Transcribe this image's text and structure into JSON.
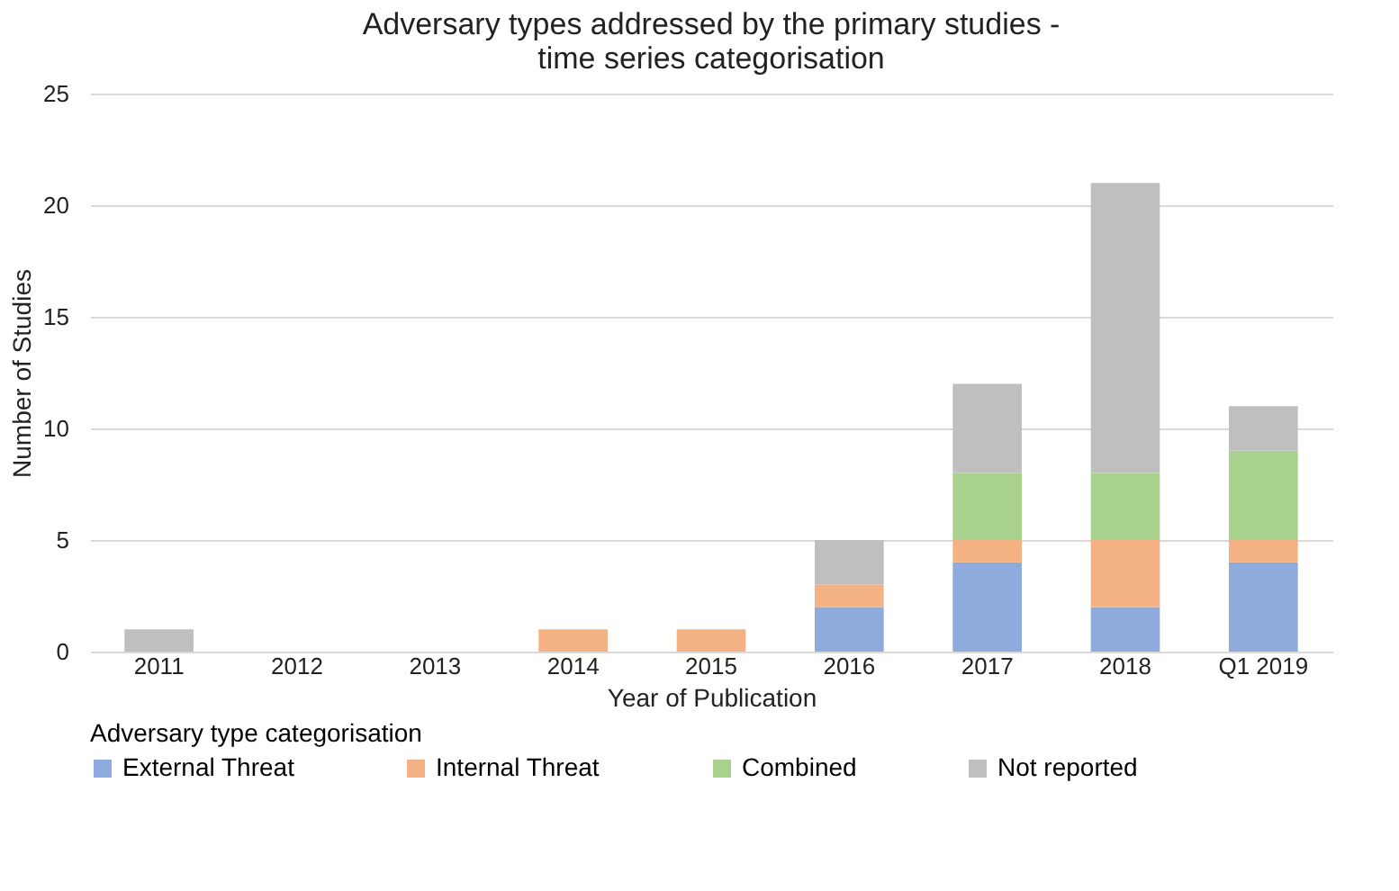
{
  "chart_data": {
    "type": "bar",
    "title": [
      "Adversary types addressed by the primary studies -",
      "time series categorisation"
    ],
    "xlabel": "Year of Publication",
    "ylabel": "Number of Studies",
    "legend_title": "Adversary type categorisation",
    "categories": [
      "2011",
      "2012",
      "2013",
      "2014",
      "2015",
      "2016",
      "2017",
      "2018",
      "Q1 2019"
    ],
    "stacked": true,
    "ylim": [
      0,
      25
    ],
    "yticks": [
      0,
      5,
      10,
      15,
      20,
      25
    ],
    "grid": "y",
    "legend": "bottom",
    "series": [
      {
        "name": "External Threat",
        "color": "#8faadc",
        "values": [
          0,
          0,
          0,
          0,
          0,
          2,
          4,
          2,
          4
        ]
      },
      {
        "name": "Internal Threat",
        "color": "#f4b183",
        "values": [
          0,
          0,
          0,
          1,
          1,
          1,
          1,
          3,
          1
        ]
      },
      {
        "name": "Combined",
        "color": "#a9d18e",
        "values": [
          0,
          0,
          0,
          0,
          0,
          0,
          3,
          3,
          4
        ]
      },
      {
        "name": "Not reported",
        "color": "#bfbfbf",
        "values": [
          1,
          0,
          0,
          0,
          0,
          2,
          4,
          13,
          2
        ]
      }
    ]
  }
}
